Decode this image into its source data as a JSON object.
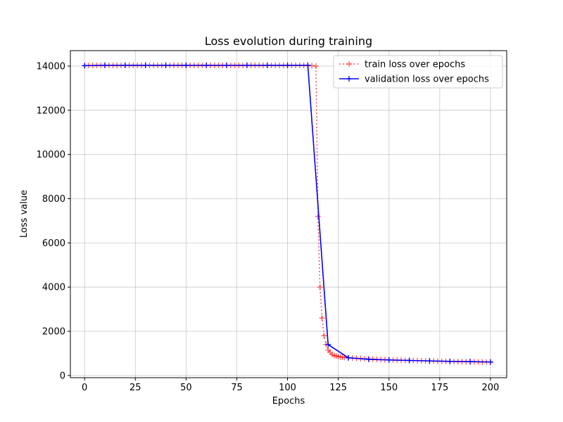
{
  "chart_data": {
    "type": "line",
    "title": "Loss evolution during training",
    "xlabel": "Epochs",
    "ylabel": "Loss value",
    "xlim": [
      -7,
      208
    ],
    "ylim": [
      -100,
      14700
    ],
    "xticks": [
      0,
      25,
      50,
      75,
      100,
      125,
      150,
      175,
      200
    ],
    "yticks": [
      0,
      2000,
      4000,
      6000,
      8000,
      10000,
      12000,
      14000
    ],
    "grid": true,
    "legend_position": "top-right",
    "series": [
      {
        "name": "train loss over epochs",
        "color": "#ff0000",
        "opacity": 0.65,
        "linestyle": "dotted",
        "marker": "+",
        "x": [
          0,
          2,
          4,
          6,
          8,
          10,
          12,
          14,
          16,
          18,
          20,
          22,
          24,
          26,
          28,
          30,
          32,
          34,
          36,
          38,
          40,
          42,
          44,
          46,
          48,
          50,
          52,
          54,
          56,
          58,
          60,
          62,
          64,
          66,
          68,
          70,
          72,
          74,
          76,
          78,
          80,
          82,
          84,
          86,
          88,
          90,
          92,
          94,
          96,
          98,
          100,
          102,
          104,
          106,
          108,
          110,
          112,
          114,
          115,
          116,
          117,
          118,
          119,
          120,
          121,
          122,
          123,
          124,
          125,
          126,
          127,
          128,
          130,
          132,
          134,
          136,
          138,
          140,
          142,
          144,
          146,
          148,
          150,
          152,
          154,
          156,
          158,
          160,
          162,
          164,
          166,
          168,
          170,
          172,
          174,
          176,
          178,
          180,
          182,
          184,
          186,
          188,
          190,
          192,
          194,
          196,
          198,
          200
        ],
        "y": [
          14020,
          14030,
          14030,
          14030,
          14030,
          14030,
          14030,
          14030,
          14030,
          14030,
          14030,
          14030,
          14030,
          14030,
          14030,
          14030,
          14030,
          14030,
          14030,
          14030,
          14030,
          14030,
          14030,
          14030,
          14030,
          14030,
          14030,
          14030,
          14030,
          14030,
          14030,
          14030,
          14030,
          14030,
          14030,
          14030,
          14030,
          14030,
          14030,
          14030,
          14030,
          14030,
          14030,
          14030,
          14030,
          14030,
          14030,
          14030,
          14030,
          14030,
          14030,
          14030,
          14030,
          14030,
          14030,
          14030,
          14020,
          14000,
          7200,
          4000,
          2600,
          1800,
          1400,
          1150,
          1050,
          950,
          900,
          880,
          860,
          840,
          830,
          820,
          800,
          790,
          780,
          770,
          760,
          750,
          740,
          730,
          720,
          715,
          710,
          700,
          695,
          690,
          685,
          680,
          675,
          670,
          665,
          660,
          655,
          650,
          645,
          640,
          635,
          630,
          628,
          625,
          622,
          620,
          618,
          615,
          612,
          610,
          608,
          605
        ]
      },
      {
        "name": "validation loss over epochs",
        "color": "#0000ff",
        "opacity": 1,
        "linestyle": "solid",
        "marker": "+",
        "x": [
          0,
          10,
          20,
          30,
          40,
          50,
          60,
          70,
          80,
          90,
          100,
          110,
          120,
          130,
          140,
          150,
          160,
          170,
          180,
          190,
          200
        ],
        "y": [
          14020,
          14040,
          14040,
          14040,
          14040,
          14040,
          14040,
          14040,
          14040,
          14040,
          14040,
          14040,
          1400,
          800,
          730,
          700,
          680,
          660,
          640,
          630,
          610
        ]
      }
    ]
  }
}
